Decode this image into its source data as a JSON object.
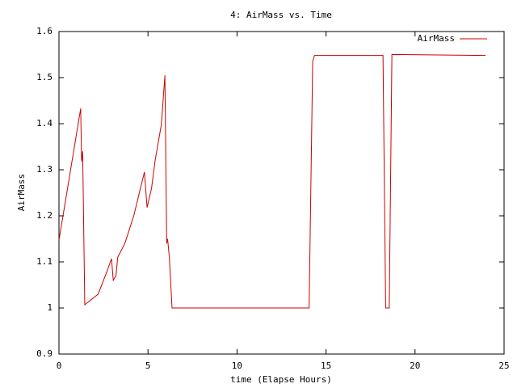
{
  "chart_data": {
    "type": "line",
    "title": "4: AirMass vs. Time",
    "x_label": "time (Elapse Hours)",
    "y_label": "AirMass",
    "x": [
      0,
      1.22,
      1.27,
      1.33,
      1.45,
      2.2,
      2.7,
      2.95,
      3.05,
      3.2,
      3.3,
      3.7,
      4.2,
      4.8,
      4.95,
      5.2,
      5.4,
      5.75,
      5.95,
      6.05,
      6.1,
      6.2,
      6.35,
      14.05,
      14.25,
      14.35,
      18.2,
      18.35,
      18.55,
      18.7,
      19.2,
      23.96
    ],
    "series": [
      {
        "name": "AirMass",
        "color": "#cc0000",
        "values": [
          1.147,
          1.433,
          1.318,
          1.34,
          1.007,
          1.03,
          1.08,
          1.107,
          1.06,
          1.07,
          1.11,
          1.14,
          1.2,
          1.295,
          1.218,
          1.26,
          1.32,
          1.398,
          1.505,
          1.14,
          1.15,
          1.11,
          1.0,
          1.0,
          1.535,
          1.548,
          1.548,
          1.0,
          1.0,
          1.55,
          1.55,
          1.548
        ]
      }
    ],
    "xlim": [
      0,
      25
    ],
    "xticks": [
      0,
      5,
      10,
      15,
      20,
      25
    ],
    "ylim": [
      0.9,
      1.6
    ],
    "yticks": [
      0.9,
      1,
      1.1,
      1.2,
      1.3,
      1.4,
      1.5,
      1.6
    ],
    "grid": false,
    "legend": "top-right"
  }
}
